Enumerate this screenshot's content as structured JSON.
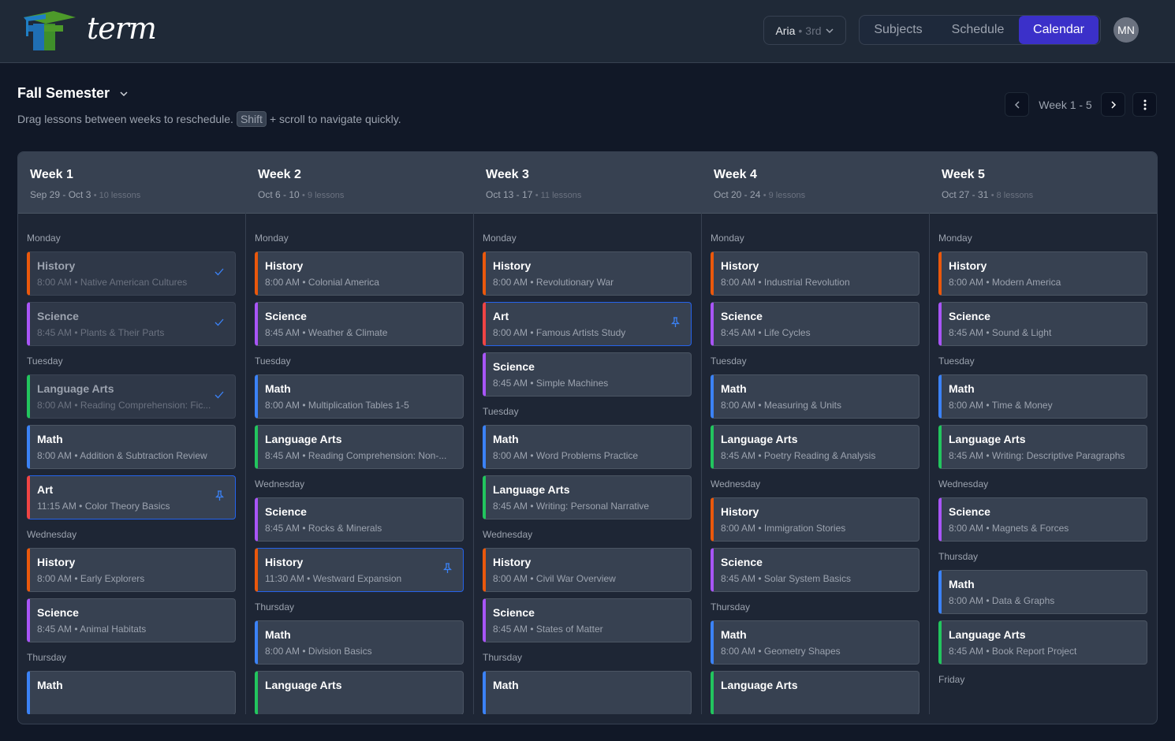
{
  "app": {
    "brand": "term",
    "student_name": "Aria",
    "student_grade": "3rd",
    "avatar_initials": "MN"
  },
  "nav": {
    "tabs": [
      {
        "label": "Subjects"
      },
      {
        "label": "Schedule"
      },
      {
        "label": "Calendar",
        "active": true
      }
    ]
  },
  "page": {
    "semester": "Fall Semester",
    "hint_before": "Drag lessons between weeks to reschedule.",
    "hint_key": "Shift",
    "hint_after": "+ scroll to navigate quickly.",
    "week_range": "Week 1 - 5"
  },
  "subject_colors": {
    "History": "#ea580c",
    "Science": "#a855f7",
    "Math": "#3b82f6",
    "Language Arts": "#22c55e",
    "Art": "#ef4444"
  },
  "weeks": [
    {
      "title": "Week 1",
      "dates": "Sep 29 - Oct 3",
      "count": "• 10 lessons",
      "days": [
        {
          "name": "Monday",
          "lessons": [
            {
              "subject": "History",
              "time": "8:00 AM",
              "topic": "Native American Cultures",
              "done": true
            },
            {
              "subject": "Science",
              "time": "8:45 AM",
              "topic": "Plants & Their Parts",
              "done": true
            }
          ]
        },
        {
          "name": "Tuesday",
          "lessons": [
            {
              "subject": "Language Arts",
              "time": "8:00 AM",
              "topic": "Reading Comprehension: Fic...",
              "done": true
            },
            {
              "subject": "Math",
              "time": "8:00 AM",
              "topic": "Addition & Subtraction Review"
            },
            {
              "subject": "Art",
              "time": "11:15 AM",
              "topic": "Color Theory Basics",
              "pinned": true
            }
          ]
        },
        {
          "name": "Wednesday",
          "lessons": [
            {
              "subject": "History",
              "time": "8:00 AM",
              "topic": "Early Explorers"
            },
            {
              "subject": "Science",
              "time": "8:45 AM",
              "topic": "Animal Habitats"
            }
          ]
        },
        {
          "name": "Thursday",
          "lessons": [
            {
              "subject": "Math"
            }
          ]
        }
      ]
    },
    {
      "title": "Week 2",
      "dates": "Oct 6 - 10",
      "count": "• 9 lessons",
      "days": [
        {
          "name": "Monday",
          "lessons": [
            {
              "subject": "History",
              "time": "8:00 AM",
              "topic": "Colonial America"
            },
            {
              "subject": "Science",
              "time": "8:45 AM",
              "topic": "Weather & Climate"
            }
          ]
        },
        {
          "name": "Tuesday",
          "lessons": [
            {
              "subject": "Math",
              "time": "8:00 AM",
              "topic": "Multiplication Tables 1-5"
            },
            {
              "subject": "Language Arts",
              "time": "8:45 AM",
              "topic": "Reading Comprehension: Non-..."
            }
          ]
        },
        {
          "name": "Wednesday",
          "lessons": [
            {
              "subject": "Science",
              "time": "8:45 AM",
              "topic": "Rocks & Minerals"
            },
            {
              "subject": "History",
              "time": "11:30 AM",
              "topic": "Westward Expansion",
              "pinned": true
            }
          ]
        },
        {
          "name": "Thursday",
          "lessons": [
            {
              "subject": "Math",
              "time": "8:00 AM",
              "topic": "Division Basics"
            },
            {
              "subject": "Language Arts"
            }
          ]
        }
      ]
    },
    {
      "title": "Week 3",
      "dates": "Oct 13 - 17",
      "count": "• 11 lessons",
      "days": [
        {
          "name": "Monday",
          "lessons": [
            {
              "subject": "History",
              "time": "8:00 AM",
              "topic": "Revolutionary War"
            },
            {
              "subject": "Art",
              "time": "8:00 AM",
              "topic": "Famous Artists Study",
              "pinned": true
            },
            {
              "subject": "Science",
              "time": "8:45 AM",
              "topic": "Simple Machines"
            }
          ]
        },
        {
          "name": "Tuesday",
          "lessons": [
            {
              "subject": "Math",
              "time": "8:00 AM",
              "topic": "Word Problems Practice"
            },
            {
              "subject": "Language Arts",
              "time": "8:45 AM",
              "topic": "Writing: Personal Narrative"
            }
          ]
        },
        {
          "name": "Wednesday",
          "lessons": [
            {
              "subject": "History",
              "time": "8:00 AM",
              "topic": "Civil War Overview"
            },
            {
              "subject": "Science",
              "time": "8:45 AM",
              "topic": "States of Matter"
            }
          ]
        },
        {
          "name": "Thursday",
          "lessons": [
            {
              "subject": "Math"
            }
          ]
        }
      ]
    },
    {
      "title": "Week 4",
      "dates": "Oct 20 - 24",
      "count": "• 9 lessons",
      "days": [
        {
          "name": "Monday",
          "lessons": [
            {
              "subject": "History",
              "time": "8:00 AM",
              "topic": "Industrial Revolution"
            },
            {
              "subject": "Science",
              "time": "8:45 AM",
              "topic": "Life Cycles"
            }
          ]
        },
        {
          "name": "Tuesday",
          "lessons": [
            {
              "subject": "Math",
              "time": "8:00 AM",
              "topic": "Measuring & Units"
            },
            {
              "subject": "Language Arts",
              "time": "8:45 AM",
              "topic": "Poetry Reading & Analysis"
            }
          ]
        },
        {
          "name": "Wednesday",
          "lessons": [
            {
              "subject": "History",
              "time": "8:00 AM",
              "topic": "Immigration Stories"
            },
            {
              "subject": "Science",
              "time": "8:45 AM",
              "topic": "Solar System Basics"
            }
          ]
        },
        {
          "name": "Thursday",
          "lessons": [
            {
              "subject": "Math",
              "time": "8:00 AM",
              "topic": "Geometry Shapes"
            },
            {
              "subject": "Language Arts"
            }
          ]
        }
      ]
    },
    {
      "title": "Week 5",
      "dates": "Oct 27 - 31",
      "count": "• 8 lessons",
      "days": [
        {
          "name": "Monday",
          "lessons": [
            {
              "subject": "History",
              "time": "8:00 AM",
              "topic": "Modern America"
            },
            {
              "subject": "Science",
              "time": "8:45 AM",
              "topic": "Sound & Light"
            }
          ]
        },
        {
          "name": "Tuesday",
          "lessons": [
            {
              "subject": "Math",
              "time": "8:00 AM",
              "topic": "Time & Money"
            },
            {
              "subject": "Language Arts",
              "time": "8:45 AM",
              "topic": "Writing: Descriptive Paragraphs"
            }
          ]
        },
        {
          "name": "Wednesday",
          "lessons": [
            {
              "subject": "Science",
              "time": "8:00 AM",
              "topic": "Magnets & Forces"
            }
          ]
        },
        {
          "name": "Thursday",
          "lessons": [
            {
              "subject": "Math",
              "time": "8:00 AM",
              "topic": "Data & Graphs"
            },
            {
              "subject": "Language Arts",
              "time": "8:45 AM",
              "topic": "Book Report Project"
            }
          ]
        },
        {
          "name": "Friday",
          "lessons": []
        }
      ]
    }
  ]
}
